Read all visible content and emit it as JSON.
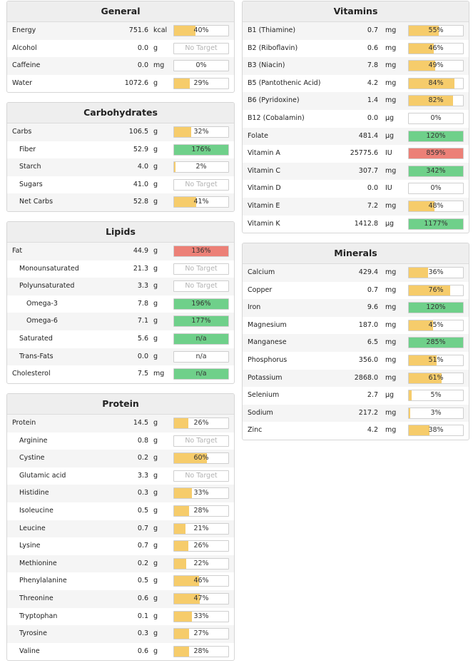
{
  "colors": {
    "yellow": "#f6cc6b",
    "green": "#6fd08a",
    "red": "#ec8077"
  },
  "left": [
    {
      "key": "general",
      "title": "General",
      "top": 1,
      "rows": [
        {
          "name": "Energy",
          "amount": "751.6",
          "unit": "kcal",
          "pct": "40%",
          "fill": 40,
          "color": "yellow",
          "indent": 0
        },
        {
          "name": "Alcohol",
          "amount": "0.0",
          "unit": "g",
          "pct": "No Target",
          "fill": 0,
          "color": "none",
          "indent": 0
        },
        {
          "name": "Caffeine",
          "amount": "0.0",
          "unit": "mg",
          "pct": "0%",
          "fill": 0,
          "color": "yellow",
          "indent": 0
        },
        {
          "name": "Water",
          "amount": "1072.6",
          "unit": "g",
          "pct": "29%",
          "fill": 29,
          "color": "yellow",
          "indent": 0
        }
      ]
    },
    {
      "key": "carbohydrates",
      "title": "Carbohydrates",
      "top": 143,
      "rows": [
        {
          "name": "Carbs",
          "amount": "106.5",
          "unit": "g",
          "pct": "32%",
          "fill": 32,
          "color": "yellow",
          "indent": 0
        },
        {
          "name": "Fiber",
          "amount": "52.9",
          "unit": "g",
          "pct": "176%",
          "fill": 100,
          "color": "green",
          "indent": 1
        },
        {
          "name": "Starch",
          "amount": "4.0",
          "unit": "g",
          "pct": "2%",
          "fill": 2,
          "color": "yellow",
          "indent": 1
        },
        {
          "name": "Sugars",
          "amount": "41.0",
          "unit": "g",
          "pct": "No Target",
          "fill": 0,
          "color": "none",
          "indent": 1
        },
        {
          "name": "Net Carbs",
          "amount": "52.8",
          "unit": "g",
          "pct": "41%",
          "fill": 41,
          "color": "yellow",
          "indent": 1
        }
      ]
    },
    {
      "key": "lipids",
      "title": "Lipids",
      "top": 310,
      "rows": [
        {
          "name": "Fat",
          "amount": "44.9",
          "unit": "g",
          "pct": "136%",
          "fill": 100,
          "color": "red",
          "indent": 0
        },
        {
          "name": "Monounsaturated",
          "amount": "21.3",
          "unit": "g",
          "pct": "No Target",
          "fill": 0,
          "color": "none",
          "indent": 1
        },
        {
          "name": "Polyunsaturated",
          "amount": "3.3",
          "unit": "g",
          "pct": "No Target",
          "fill": 0,
          "color": "none",
          "indent": 1
        },
        {
          "name": "Omega-3",
          "amount": "7.8",
          "unit": "g",
          "pct": "196%",
          "fill": 100,
          "color": "green",
          "indent": 2
        },
        {
          "name": "Omega-6",
          "amount": "7.1",
          "unit": "g",
          "pct": "177%",
          "fill": 100,
          "color": "green",
          "indent": 2
        },
        {
          "name": "Saturated",
          "amount": "5.6",
          "unit": "g",
          "pct": "n/a",
          "fill": 100,
          "color": "green",
          "indent": 1
        },
        {
          "name": "Trans-Fats",
          "amount": "0.0",
          "unit": "g",
          "pct": "n/a",
          "fill": 0,
          "color": "none",
          "indent": 1
        },
        {
          "name": "Cholesterol",
          "amount": "7.5",
          "unit": "mg",
          "pct": "n/a",
          "fill": 100,
          "color": "green",
          "indent": 0
        }
      ]
    },
    {
      "key": "protein",
      "title": "Protein",
      "top": 551,
      "rows": [
        {
          "name": "Protein",
          "amount": "14.5",
          "unit": "g",
          "pct": "26%",
          "fill": 26,
          "color": "yellow",
          "indent": 0
        },
        {
          "name": "Arginine",
          "amount": "0.8",
          "unit": "g",
          "pct": "No Target",
          "fill": 0,
          "color": "none",
          "indent": 1
        },
        {
          "name": "Cystine",
          "amount": "0.2",
          "unit": "g",
          "pct": "60%",
          "fill": 60,
          "color": "yellow",
          "indent": 1
        },
        {
          "name": "Glutamic acid",
          "amount": "3.3",
          "unit": "g",
          "pct": "No Target",
          "fill": 0,
          "color": "none",
          "indent": 1
        },
        {
          "name": "Histidine",
          "amount": "0.3",
          "unit": "g",
          "pct": "33%",
          "fill": 33,
          "color": "yellow",
          "indent": 1
        },
        {
          "name": "Isoleucine",
          "amount": "0.5",
          "unit": "g",
          "pct": "28%",
          "fill": 28,
          "color": "yellow",
          "indent": 1
        },
        {
          "name": "Leucine",
          "amount": "0.7",
          "unit": "g",
          "pct": "21%",
          "fill": 21,
          "color": "yellow",
          "indent": 1
        },
        {
          "name": "Lysine",
          "amount": "0.7",
          "unit": "g",
          "pct": "26%",
          "fill": 26,
          "color": "yellow",
          "indent": 1
        },
        {
          "name": "Methionine",
          "amount": "0.2",
          "unit": "g",
          "pct": "22%",
          "fill": 22,
          "color": "yellow",
          "indent": 1
        },
        {
          "name": "Phenylalanine",
          "amount": "0.5",
          "unit": "g",
          "pct": "46%",
          "fill": 46,
          "color": "yellow",
          "indent": 1
        },
        {
          "name": "Threonine",
          "amount": "0.6",
          "unit": "g",
          "pct": "47%",
          "fill": 47,
          "color": "yellow",
          "indent": 1
        },
        {
          "name": "Tryptophan",
          "amount": "0.1",
          "unit": "g",
          "pct": "33%",
          "fill": 33,
          "color": "yellow",
          "indent": 1
        },
        {
          "name": "Tyrosine",
          "amount": "0.3",
          "unit": "g",
          "pct": "27%",
          "fill": 27,
          "color": "yellow",
          "indent": 1
        },
        {
          "name": "Valine",
          "amount": "0.6",
          "unit": "g",
          "pct": "28%",
          "fill": 28,
          "color": "yellow",
          "indent": 1
        }
      ]
    }
  ],
  "right": [
    {
      "key": "vitamins",
      "title": "Vitamins",
      "top": 1,
      "rows": [
        {
          "name": "B1 (Thiamine)",
          "amount": "0.7",
          "unit": "mg",
          "pct": "55%",
          "fill": 55,
          "color": "yellow",
          "indent": 0
        },
        {
          "name": "B2 (Riboflavin)",
          "amount": "0.6",
          "unit": "mg",
          "pct": "46%",
          "fill": 46,
          "color": "yellow",
          "indent": 0
        },
        {
          "name": "B3 (Niacin)",
          "amount": "7.8",
          "unit": "mg",
          "pct": "49%",
          "fill": 49,
          "color": "yellow",
          "indent": 0
        },
        {
          "name": "B5 (Pantothenic Acid)",
          "amount": "4.2",
          "unit": "mg",
          "pct": "84%",
          "fill": 84,
          "color": "yellow",
          "indent": 0
        },
        {
          "name": "B6 (Pyridoxine)",
          "amount": "1.4",
          "unit": "mg",
          "pct": "82%",
          "fill": 82,
          "color": "yellow",
          "indent": 0
        },
        {
          "name": "B12 (Cobalamin)",
          "amount": "0.0",
          "unit": "µg",
          "pct": "0%",
          "fill": 0,
          "color": "yellow",
          "indent": 0
        },
        {
          "name": "Folate",
          "amount": "481.4",
          "unit": "µg",
          "pct": "120%",
          "fill": 100,
          "color": "green",
          "indent": 0
        },
        {
          "name": "Vitamin A",
          "amount": "25775.6",
          "unit": "IU",
          "pct": "859%",
          "fill": 100,
          "color": "red",
          "indent": 0
        },
        {
          "name": "Vitamin C",
          "amount": "307.7",
          "unit": "mg",
          "pct": "342%",
          "fill": 100,
          "color": "green",
          "indent": 0
        },
        {
          "name": "Vitamin D",
          "amount": "0.0",
          "unit": "IU",
          "pct": "0%",
          "fill": 0,
          "color": "yellow",
          "indent": 0
        },
        {
          "name": "Vitamin E",
          "amount": "7.2",
          "unit": "mg",
          "pct": "48%",
          "fill": 48,
          "color": "yellow",
          "indent": 0
        },
        {
          "name": "Vitamin K",
          "amount": "1412.8",
          "unit": "µg",
          "pct": "1177%",
          "fill": 100,
          "color": "green",
          "indent": 0
        }
      ]
    },
    {
      "key": "minerals",
      "title": "Minerals",
      "top": 340,
      "rows": [
        {
          "name": "Calcium",
          "amount": "429.4",
          "unit": "mg",
          "pct": "36%",
          "fill": 36,
          "color": "yellow",
          "indent": 0
        },
        {
          "name": "Copper",
          "amount": "0.7",
          "unit": "mg",
          "pct": "76%",
          "fill": 76,
          "color": "yellow",
          "indent": 0
        },
        {
          "name": "Iron",
          "amount": "9.6",
          "unit": "mg",
          "pct": "120%",
          "fill": 100,
          "color": "green",
          "indent": 0
        },
        {
          "name": "Magnesium",
          "amount": "187.0",
          "unit": "mg",
          "pct": "45%",
          "fill": 45,
          "color": "yellow",
          "indent": 0
        },
        {
          "name": "Manganese",
          "amount": "6.5",
          "unit": "mg",
          "pct": "285%",
          "fill": 100,
          "color": "green",
          "indent": 0
        },
        {
          "name": "Phosphorus",
          "amount": "356.0",
          "unit": "mg",
          "pct": "51%",
          "fill": 51,
          "color": "yellow",
          "indent": 0
        },
        {
          "name": "Potassium",
          "amount": "2868.0",
          "unit": "mg",
          "pct": "61%",
          "fill": 61,
          "color": "yellow",
          "indent": 0
        },
        {
          "name": "Selenium",
          "amount": "2.7",
          "unit": "µg",
          "pct": "5%",
          "fill": 5,
          "color": "yellow",
          "indent": 0
        },
        {
          "name": "Sodium",
          "amount": "217.2",
          "unit": "mg",
          "pct": "3%",
          "fill": 3,
          "color": "yellow",
          "indent": 0
        },
        {
          "name": "Zinc",
          "amount": "4.2",
          "unit": "mg",
          "pct": "38%",
          "fill": 38,
          "color": "yellow",
          "indent": 0
        }
      ]
    }
  ]
}
